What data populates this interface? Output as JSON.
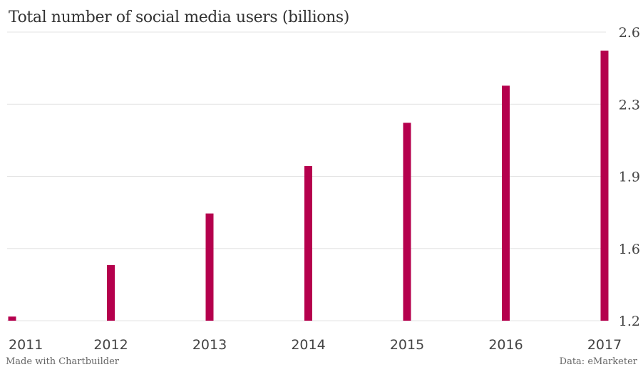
{
  "chart_data": {
    "type": "bar",
    "title": "Total number of social media users (billions)",
    "categories": [
      "2011",
      "2012",
      "2013",
      "2014",
      "2015",
      "2016",
      "2017"
    ],
    "values": [
      1.22,
      1.47,
      1.72,
      1.95,
      2.16,
      2.34,
      2.51
    ],
    "ylim": [
      1.2,
      2.6
    ],
    "yticks": [
      "1.2",
      "1.6",
      "1.9",
      "2.3",
      "2.6"
    ],
    "ytick_values": [
      1.2,
      1.55,
      1.9,
      2.25,
      2.6
    ],
    "y_axis_position": "right",
    "grid": true,
    "bar_color": "#b5004d"
  },
  "footer": {
    "credit": "Made with Chartbuilder",
    "source": "Data: eMarketer"
  }
}
